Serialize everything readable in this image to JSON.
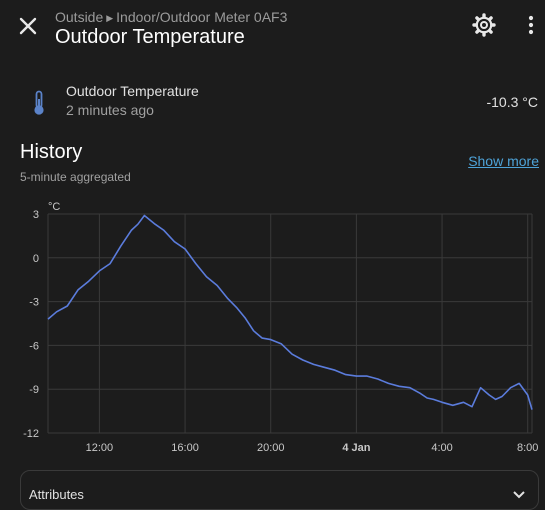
{
  "header": {
    "breadcrumb": [
      "Outside",
      "Indoor/Outdoor Meter 0AF3"
    ],
    "title": "Outdoor Temperature"
  },
  "icons": {
    "close": "close-icon",
    "settings": "gear-icon",
    "menu": "more-vertical-icon",
    "entity": "thermometer-icon",
    "expand": "chevron-down-icon"
  },
  "entity": {
    "name": "Outdoor Temperature",
    "last_changed": "2 minutes ago",
    "value": "-10.3 °C"
  },
  "history": {
    "title": "History",
    "subtitle": "5-minute aggregated",
    "show_more": "Show more"
  },
  "attributes": {
    "label": "Attributes"
  },
  "colors": {
    "background": "#1c1c1c",
    "series": "#5b7cdc",
    "link": "#4ea3d8",
    "grid": "#3a3a3a"
  },
  "chart_data": {
    "type": "line",
    "ylabel": "°C",
    "ylim": [
      -12,
      3
    ],
    "yticks": [
      "3",
      "0",
      "-3",
      "-6",
      "-9",
      "-12"
    ],
    "ytick_values": [
      3,
      0,
      -3,
      -6,
      -9,
      -12
    ],
    "xlim": [
      9.6,
      32.2
    ],
    "xticks": [
      "12:00",
      "16:00",
      "20:00",
      "4 Jan",
      "4:00",
      "8:00"
    ],
    "xtick_values": [
      12,
      16,
      20,
      24,
      28,
      32
    ],
    "xtick_bold": [
      false,
      false,
      false,
      true,
      false,
      false
    ],
    "grid": true,
    "series": [
      {
        "x": [
          9.6,
          10.0,
          10.5,
          11.0,
          11.5,
          12.0,
          12.5,
          13.0,
          13.5,
          13.8,
          14.1,
          14.6,
          15.0,
          15.5,
          16.0,
          16.5,
          17.0,
          17.5,
          18.0,
          18.4,
          18.8,
          19.2,
          19.6,
          20.0,
          20.5,
          21.0,
          21.5,
          22.0,
          22.5,
          23.0,
          23.5,
          24.0,
          24.5,
          25.0,
          25.5,
          26.0,
          26.5,
          27.0,
          27.3,
          27.6,
          28.0,
          28.5,
          29.0,
          29.4,
          29.8,
          30.2,
          30.5,
          30.8,
          31.2,
          31.6,
          32.0,
          32.2
        ],
        "values": [
          -4.2,
          -3.7,
          -3.3,
          -2.2,
          -1.6,
          -0.9,
          -0.4,
          0.8,
          1.9,
          2.3,
          2.9,
          2.3,
          1.9,
          1.1,
          0.6,
          -0.4,
          -1.3,
          -1.9,
          -2.8,
          -3.4,
          -4.1,
          -5.0,
          -5.5,
          -5.6,
          -5.9,
          -6.6,
          -7.0,
          -7.3,
          -7.5,
          -7.7,
          -8.0,
          -8.1,
          -8.1,
          -8.3,
          -8.6,
          -8.8,
          -8.9,
          -9.3,
          -9.6,
          -9.7,
          -9.9,
          -10.1,
          -9.9,
          -10.2,
          -8.9,
          -9.4,
          -9.7,
          -9.5,
          -8.9,
          -8.6,
          -9.4,
          -10.4
        ]
      }
    ]
  }
}
